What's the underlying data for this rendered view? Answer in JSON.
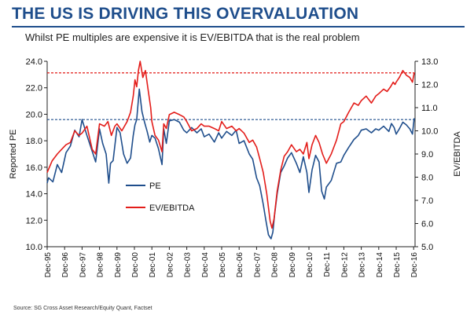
{
  "header": {
    "title": "THE US IS DRIVING THIS OVERVALUATION",
    "subtitle": "Whilst PE multiples are expensive it is EV/EBITDA that is the real problem"
  },
  "footer": {
    "source": "Source: SG Cross Asset Research/Equity Quant, Factset"
  },
  "chart_data": {
    "type": "line",
    "ylabel": "Reported PE",
    "y2label": "EV/EBITDA",
    "ylim": [
      10.0,
      24.0
    ],
    "yticks": [
      "10.0",
      "12.0",
      "14.0",
      "16.0",
      "18.0",
      "20.0",
      "22.0",
      "24.0"
    ],
    "y2lim": [
      5.0,
      13.0
    ],
    "y2ticks": [
      "5.0",
      "6.0",
      "7.0",
      "8.0",
      "9.0",
      "10.0",
      "11.0",
      "12.0",
      "13.0"
    ],
    "xlim": [
      1995.92,
      2017.0
    ],
    "xticks": [
      {
        "x": 1995.92,
        "label": "Dec-95"
      },
      {
        "x": 1996.92,
        "label": "Dec-96"
      },
      {
        "x": 1997.92,
        "label": "Dec-97"
      },
      {
        "x": 1998.92,
        "label": "Dec-98"
      },
      {
        "x": 1999.92,
        "label": "Dec-99"
      },
      {
        "x": 2000.92,
        "label": "Dec-00"
      },
      {
        "x": 2001.92,
        "label": "Dec-01"
      },
      {
        "x": 2002.92,
        "label": "Dec-02"
      },
      {
        "x": 2003.92,
        "label": "Dec-03"
      },
      {
        "x": 2004.92,
        "label": "Dec-04"
      },
      {
        "x": 2005.92,
        "label": "Dec-05"
      },
      {
        "x": 2006.92,
        "label": "Dec-06"
      },
      {
        "x": 2007.92,
        "label": "Dec-07"
      },
      {
        "x": 2008.92,
        "label": "Dec-08"
      },
      {
        "x": 2009.92,
        "label": "Dec-09"
      },
      {
        "x": 2010.92,
        "label": "Dec-10"
      },
      {
        "x": 2011.92,
        "label": "Dec-11"
      },
      {
        "x": 2012.92,
        "label": "Dec-12"
      },
      {
        "x": 2013.92,
        "label": "Dec-13"
      },
      {
        "x": 2014.92,
        "label": "Dec-14"
      },
      {
        "x": 2015.92,
        "label": "Dec-15"
      },
      {
        "x": 2016.92,
        "label": "Dec-16"
      }
    ],
    "legend_position": "center-left",
    "series": [
      {
        "name": "PE",
        "axis": "left",
        "color": "#1f4e8c",
        "x": [
          1995.92,
          1996.0,
          1996.25,
          1996.5,
          1996.75,
          1997.0,
          1997.25,
          1997.5,
          1997.75,
          1997.92,
          1998.2,
          1998.5,
          1998.7,
          1998.92,
          1999.1,
          1999.3,
          1999.45,
          1999.55,
          1999.7,
          1999.92,
          2000.1,
          2000.3,
          2000.5,
          2000.7,
          2000.85,
          2000.95,
          2001.05,
          2001.2,
          2001.35,
          2001.5,
          2001.65,
          2001.8,
          2001.92,
          2002.1,
          2002.3,
          2002.5,
          2002.6,
          2002.75,
          2002.92,
          2003.2,
          2003.5,
          2003.75,
          2003.92,
          2004.2,
          2004.5,
          2004.75,
          2004.92,
          2005.2,
          2005.5,
          2005.75,
          2005.92,
          2006.2,
          2006.5,
          2006.75,
          2006.92,
          2007.2,
          2007.5,
          2007.7,
          2007.92,
          2008.1,
          2008.3,
          2008.45,
          2008.6,
          2008.75,
          2008.85,
          2008.95,
          2009.1,
          2009.3,
          2009.5,
          2009.7,
          2009.92,
          2010.2,
          2010.4,
          2010.6,
          2010.8,
          2010.92,
          2011.1,
          2011.3,
          2011.5,
          2011.65,
          2011.8,
          2011.92,
          2012.2,
          2012.5,
          2012.75,
          2012.92,
          2013.2,
          2013.5,
          2013.75,
          2013.92,
          2014.2,
          2014.5,
          2014.75,
          2014.92,
          2015.2,
          2015.5,
          2015.65,
          2015.8,
          2015.92,
          2016.1,
          2016.3,
          2016.5,
          2016.7,
          2016.85,
          2016.95
        ],
        "values": [
          14.8,
          15.2,
          14.9,
          16.2,
          15.6,
          17.1,
          17.6,
          18.8,
          18.3,
          19.6,
          18.4,
          17.2,
          16.4,
          18.9,
          17.8,
          17.0,
          14.8,
          16.3,
          16.5,
          19.0,
          18.6,
          17.0,
          16.3,
          16.7,
          18.4,
          19.2,
          19.6,
          21.9,
          20.2,
          19.4,
          18.7,
          17.9,
          18.4,
          18.2,
          17.4,
          16.2,
          18.9,
          17.8,
          19.5,
          19.6,
          19.4,
          18.8,
          18.6,
          19.0,
          18.6,
          18.9,
          18.3,
          18.5,
          17.9,
          18.6,
          18.2,
          18.7,
          18.4,
          18.8,
          17.8,
          18.0,
          17.0,
          16.6,
          15.2,
          14.6,
          13.2,
          12.0,
          10.9,
          10.6,
          11.1,
          12.4,
          14.0,
          15.6,
          16.1,
          16.7,
          17.1,
          16.3,
          15.6,
          16.8,
          15.6,
          14.1,
          15.8,
          16.9,
          16.4,
          14.2,
          13.6,
          14.5,
          15.0,
          16.3,
          16.4,
          16.9,
          17.5,
          18.1,
          18.4,
          18.8,
          18.9,
          18.6,
          18.9,
          18.8,
          19.1,
          18.7,
          19.3,
          19.0,
          18.5,
          18.9,
          19.4,
          19.2,
          18.9,
          18.5,
          19.7
        ],
        "reference_line": 19.6
      },
      {
        "name": "EV/EBITDA",
        "axis": "right",
        "color": "#e31d1a",
        "x": [
          1995.92,
          1996.2,
          1996.5,
          1996.75,
          1997.0,
          1997.25,
          1997.5,
          1997.75,
          1997.92,
          1998.2,
          1998.5,
          1998.7,
          1998.92,
          1999.2,
          1999.4,
          1999.6,
          1999.8,
          1999.92,
          2000.2,
          2000.5,
          2000.7,
          2000.85,
          2000.95,
          2001.05,
          2001.15,
          2001.25,
          2001.4,
          2001.55,
          2001.7,
          2001.85,
          2001.92,
          2002.1,
          2002.3,
          2002.5,
          2002.6,
          2002.75,
          2002.92,
          2003.2,
          2003.5,
          2003.75,
          2003.92,
          2004.2,
          2004.5,
          2004.75,
          2004.92,
          2005.2,
          2005.5,
          2005.75,
          2005.92,
          2006.2,
          2006.5,
          2006.75,
          2006.92,
          2007.2,
          2007.5,
          2007.7,
          2007.92,
          2008.1,
          2008.3,
          2008.5,
          2008.7,
          2008.8,
          2008.92,
          2009.1,
          2009.3,
          2009.5,
          2009.7,
          2009.92,
          2010.2,
          2010.4,
          2010.6,
          2010.8,
          2010.92,
          2011.1,
          2011.3,
          2011.5,
          2011.7,
          2011.92,
          2012.2,
          2012.5,
          2012.75,
          2012.92,
          2013.2,
          2013.5,
          2013.75,
          2013.92,
          2014.2,
          2014.5,
          2014.75,
          2014.92,
          2015.2,
          2015.4,
          2015.6,
          2015.75,
          2015.85,
          2015.92,
          2016.1,
          2016.3,
          2016.5,
          2016.7,
          2016.85,
          2016.95
        ],
        "values": [
          8.2,
          8.7,
          9.0,
          9.2,
          9.4,
          9.5,
          10.0,
          9.8,
          9.9,
          10.2,
          9.2,
          9.0,
          10.3,
          10.2,
          10.4,
          9.8,
          10.2,
          10.3,
          10.0,
          10.4,
          10.8,
          11.5,
          12.2,
          11.9,
          12.6,
          13.0,
          12.3,
          12.6,
          11.8,
          11.0,
          10.4,
          9.8,
          9.6,
          9.1,
          10.3,
          10.1,
          10.7,
          10.8,
          10.7,
          10.6,
          10.4,
          10.0,
          10.1,
          10.3,
          10.2,
          10.2,
          10.1,
          10.0,
          10.4,
          10.1,
          10.2,
          10.0,
          10.1,
          9.9,
          9.5,
          9.6,
          9.3,
          8.8,
          8.2,
          7.3,
          6.1,
          5.8,
          6.2,
          7.4,
          8.3,
          8.9,
          9.1,
          9.4,
          9.1,
          9.2,
          9.0,
          9.5,
          8.8,
          9.4,
          9.8,
          9.5,
          9.0,
          8.6,
          9.0,
          9.6,
          10.3,
          10.4,
          10.8,
          11.2,
          11.1,
          11.3,
          11.5,
          11.2,
          11.5,
          11.6,
          11.8,
          11.7,
          11.9,
          12.1,
          12.0,
          12.1,
          12.3,
          12.6,
          12.4,
          12.3,
          12.1,
          12.5
        ],
        "reference_line": 12.5
      }
    ]
  }
}
